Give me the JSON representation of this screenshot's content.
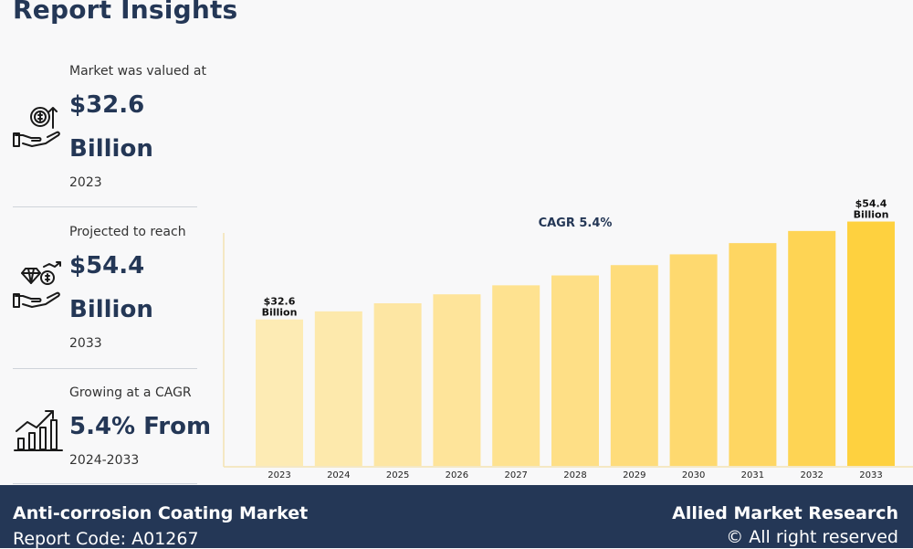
{
  "header": {
    "title": "Report Insights"
  },
  "stats": [
    {
      "label": "Market was valued at",
      "value_line1": "$32.6",
      "value_line2": "Billion",
      "sub": "2023",
      "icon": "money-hand-icon"
    },
    {
      "label": "Projected to reach",
      "value_line1": "$54.4",
      "value_line2": "Billion",
      "sub": "2033",
      "icon": "diamond-hand-icon"
    },
    {
      "label": "Growing at a CAGR",
      "value_line1": "5.4% From",
      "sub": "2024-2033",
      "icon": "growth-chart-icon"
    }
  ],
  "chart_data": {
    "type": "bar",
    "title": "CAGR 5.4%",
    "categories": [
      "2023",
      "2024",
      "2025",
      "2026",
      "2027",
      "2028",
      "2029",
      "2030",
      "2031",
      "2032",
      "2033"
    ],
    "values": [
      32.6,
      34.4,
      36.2,
      38.2,
      40.2,
      42.4,
      44.7,
      47.1,
      49.6,
      52.3,
      54.4
    ],
    "ylim": [
      0,
      60
    ],
    "data_labels": [
      {
        "index": 0,
        "line1": "$32.6",
        "line2": "Billion"
      },
      {
        "index": 10,
        "line1": "$54.4",
        "line2": "Billion"
      }
    ],
    "colors": [
      "#fdebb4",
      "#fde9ac",
      "#fde6a3",
      "#fee49a",
      "#fee290",
      "#fedf86",
      "#fedc7b",
      "#fed96f",
      "#fed662",
      "#fed454",
      "#fed13f"
    ],
    "grid": false,
    "legend": "none"
  },
  "footer": {
    "market_name": "Anti-corrosion Coating Market",
    "report_code": "Report Code: A01267",
    "publisher": "Allied Market Research",
    "rights": "© All right reserved"
  }
}
